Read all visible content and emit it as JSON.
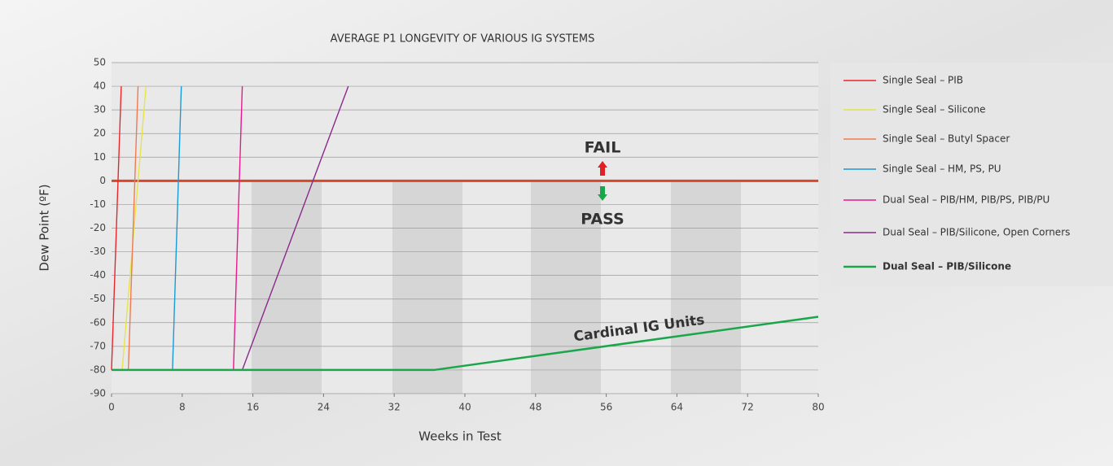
{
  "chart_data": {
    "type": "line",
    "title": "AVERAGE P1 LONGEVITY OF VARIOUS IG SYSTEMS",
    "x_label": "Weeks in Test",
    "y_label": "Dew Point (ºF)",
    "xlim": [
      0,
      80
    ],
    "ylim": [
      -90,
      50
    ],
    "xticks": [
      0,
      8,
      16,
      24,
      32,
      40,
      48,
      56,
      64,
      72,
      80
    ],
    "yticks": [
      -90,
      -80,
      -70,
      -60,
      -50,
      -40,
      -30,
      -20,
      -10,
      0,
      10,
      20,
      30,
      40,
      50
    ],
    "grid": true,
    "legend": "right",
    "threshold": 0,
    "threshold_color": "#d9472b",
    "annotations": [
      {
        "text": "FAIL",
        "color": "#e31e24"
      },
      {
        "text": "PASS",
        "color": "#1aa64a"
      },
      {
        "text": "Cardinal IG Units",
        "color": "#7a7a7a"
      }
    ],
    "series": [
      {
        "name": "Single Seal – PIB",
        "color": "#e8262a",
        "x": [
          0,
          1.1
        ],
        "values": [
          -80,
          40
        ]
      },
      {
        "name": "Single Seal – Silicone",
        "color": "#e6e44a",
        "x": [
          1.2,
          3.9
        ],
        "values": [
          -80,
          40
        ]
      },
      {
        "name": "Single Seal – Butyl Spacer",
        "color": "#f07a50",
        "x": [
          1.9,
          3.0
        ],
        "values": [
          -80,
          40
        ]
      },
      {
        "name": "Single Seal – HM, PS, PU",
        "color": "#1a9ad6",
        "x": [
          6.9,
          7.9
        ],
        "values": [
          -80,
          40
        ]
      },
      {
        "name": "Dual Seal – PIB/HM, PIB/PS, PIB/PU",
        "color": "#e6198a",
        "x": [
          13.8,
          14.8
        ],
        "values": [
          -80,
          40
        ]
      },
      {
        "name": "Dual Seal – PIB/Silicone, Open Corners",
        "color": "#8a2a8a",
        "x": [
          14.8,
          26.8
        ],
        "values": [
          -80,
          40
        ]
      },
      {
        "name": "Dual Seal – PIB/Silicone",
        "color": "#1aa64a",
        "bold": true,
        "x": [
          0,
          36.5,
          80
        ],
        "values": [
          -80,
          -80,
          -57.5
        ]
      }
    ]
  }
}
